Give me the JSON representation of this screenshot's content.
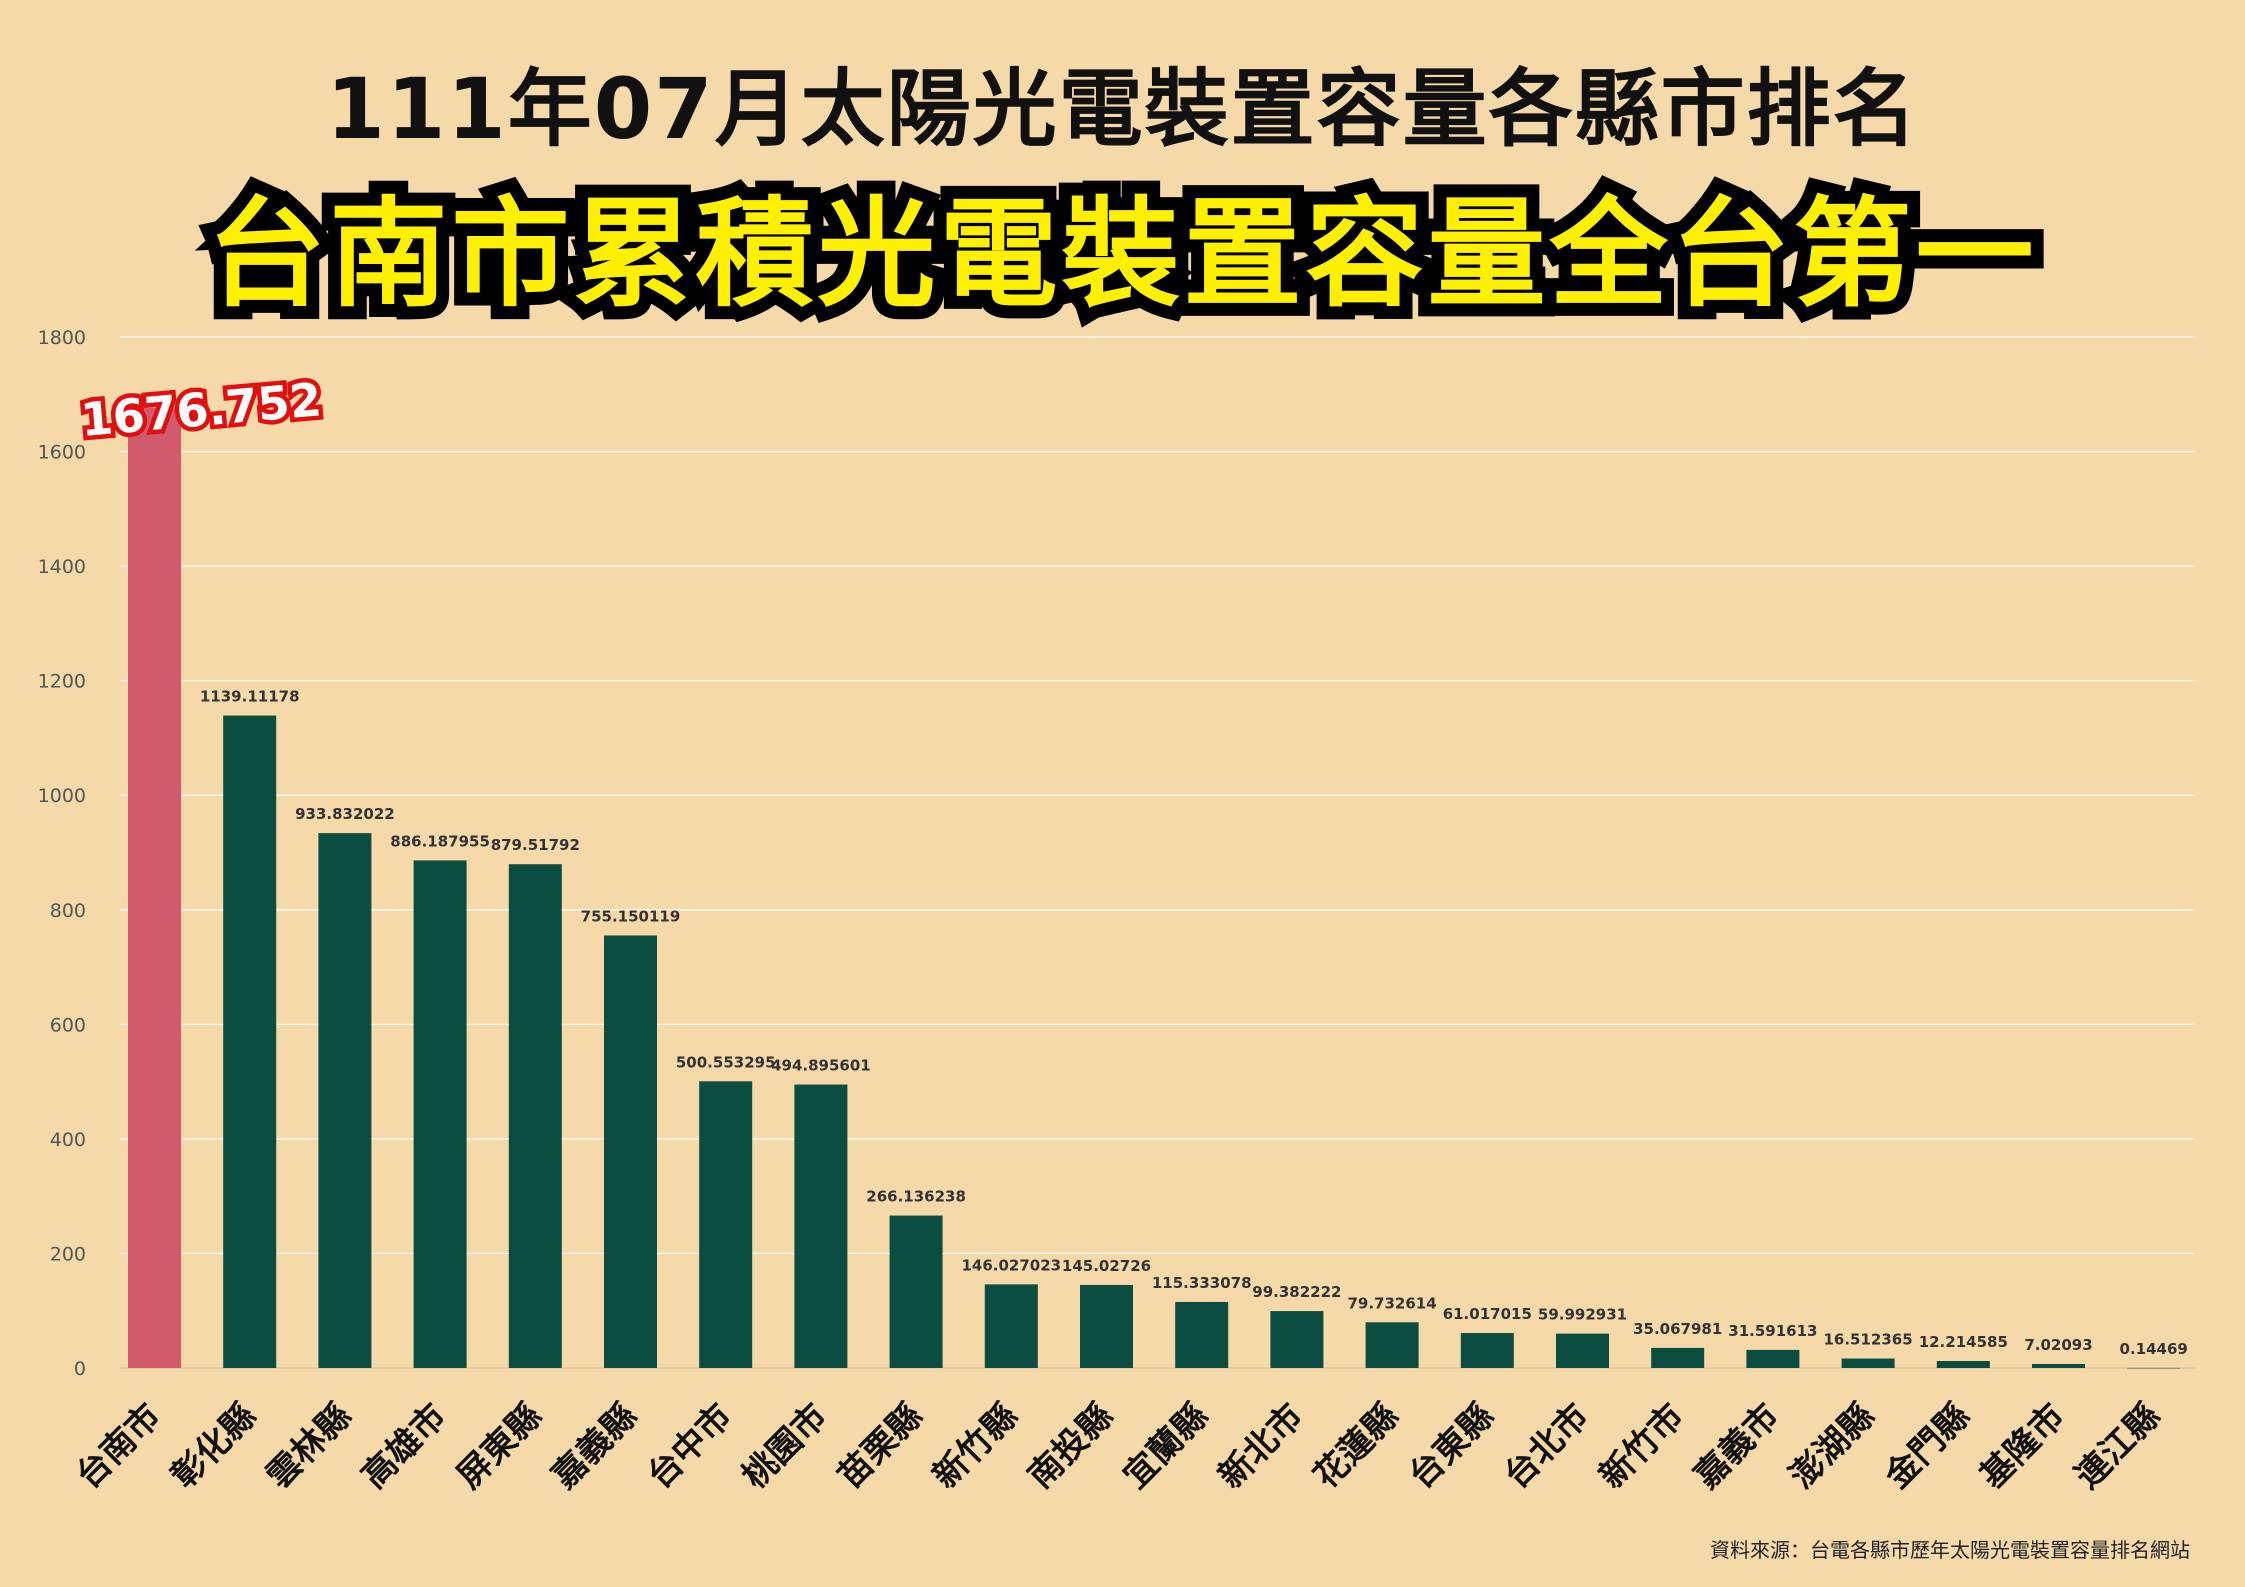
{
  "title": "111年07月太陽光電裝置容量各縣市排名",
  "subtitle": "台南市累積光電裝置容量全台第一",
  "source": "資料來源：台電各縣市歷年太陽光電裝置容量排名網站",
  "colors": {
    "background": "#f5d9a9",
    "bar": "#0b4d40",
    "highlight_bar": "#d15a6c",
    "grid": "#ffffff",
    "subtitle_fill": "#fff000",
    "highlight_label_stroke": "#e01010"
  },
  "chart_data": {
    "type": "bar",
    "title": "",
    "xlabel": "",
    "ylabel": "",
    "ylim": [
      0,
      1800
    ],
    "yticks": [
      0,
      200,
      400,
      600,
      800,
      1000,
      1200,
      1400,
      1600,
      1800
    ],
    "grid": true,
    "legend": "none",
    "highlight_index": 0,
    "categories": [
      "台南市",
      "彰化縣",
      "雲林縣",
      "高雄市",
      "屏東縣",
      "嘉義縣",
      "台中市",
      "桃園市",
      "苗栗縣",
      "新竹縣",
      "南投縣",
      "宜蘭縣",
      "新北市",
      "花蓮縣",
      "台東縣",
      "台北市",
      "新竹市",
      "嘉義市",
      "澎湖縣",
      "金門縣",
      "基隆市",
      "連江縣"
    ],
    "values": [
      1676.752,
      1139.11178,
      933.832022,
      886.187955,
      879.51792,
      755.150119,
      500.553295,
      494.895601,
      266.136238,
      146.027023,
      145.02726,
      115.333078,
      99.382222,
      79.732614,
      61.017015,
      59.992931,
      35.067981,
      31.591613,
      16.512365,
      12.214585,
      7.02093,
      0.14469
    ],
    "value_labels": [
      "1676.752",
      "1139.11178",
      "933.832022",
      "886.187955",
      "879.51792",
      "755.150119",
      "500.553295",
      "494.895601",
      "266.136238",
      "146.027023",
      "145.02726",
      "115.333078",
      "99.382222",
      "79.732614",
      "61.017015",
      "59.992931",
      "35.067981",
      "31.591613",
      "16.512365",
      "12.214585",
      "7.02093",
      "0.14469"
    ]
  }
}
